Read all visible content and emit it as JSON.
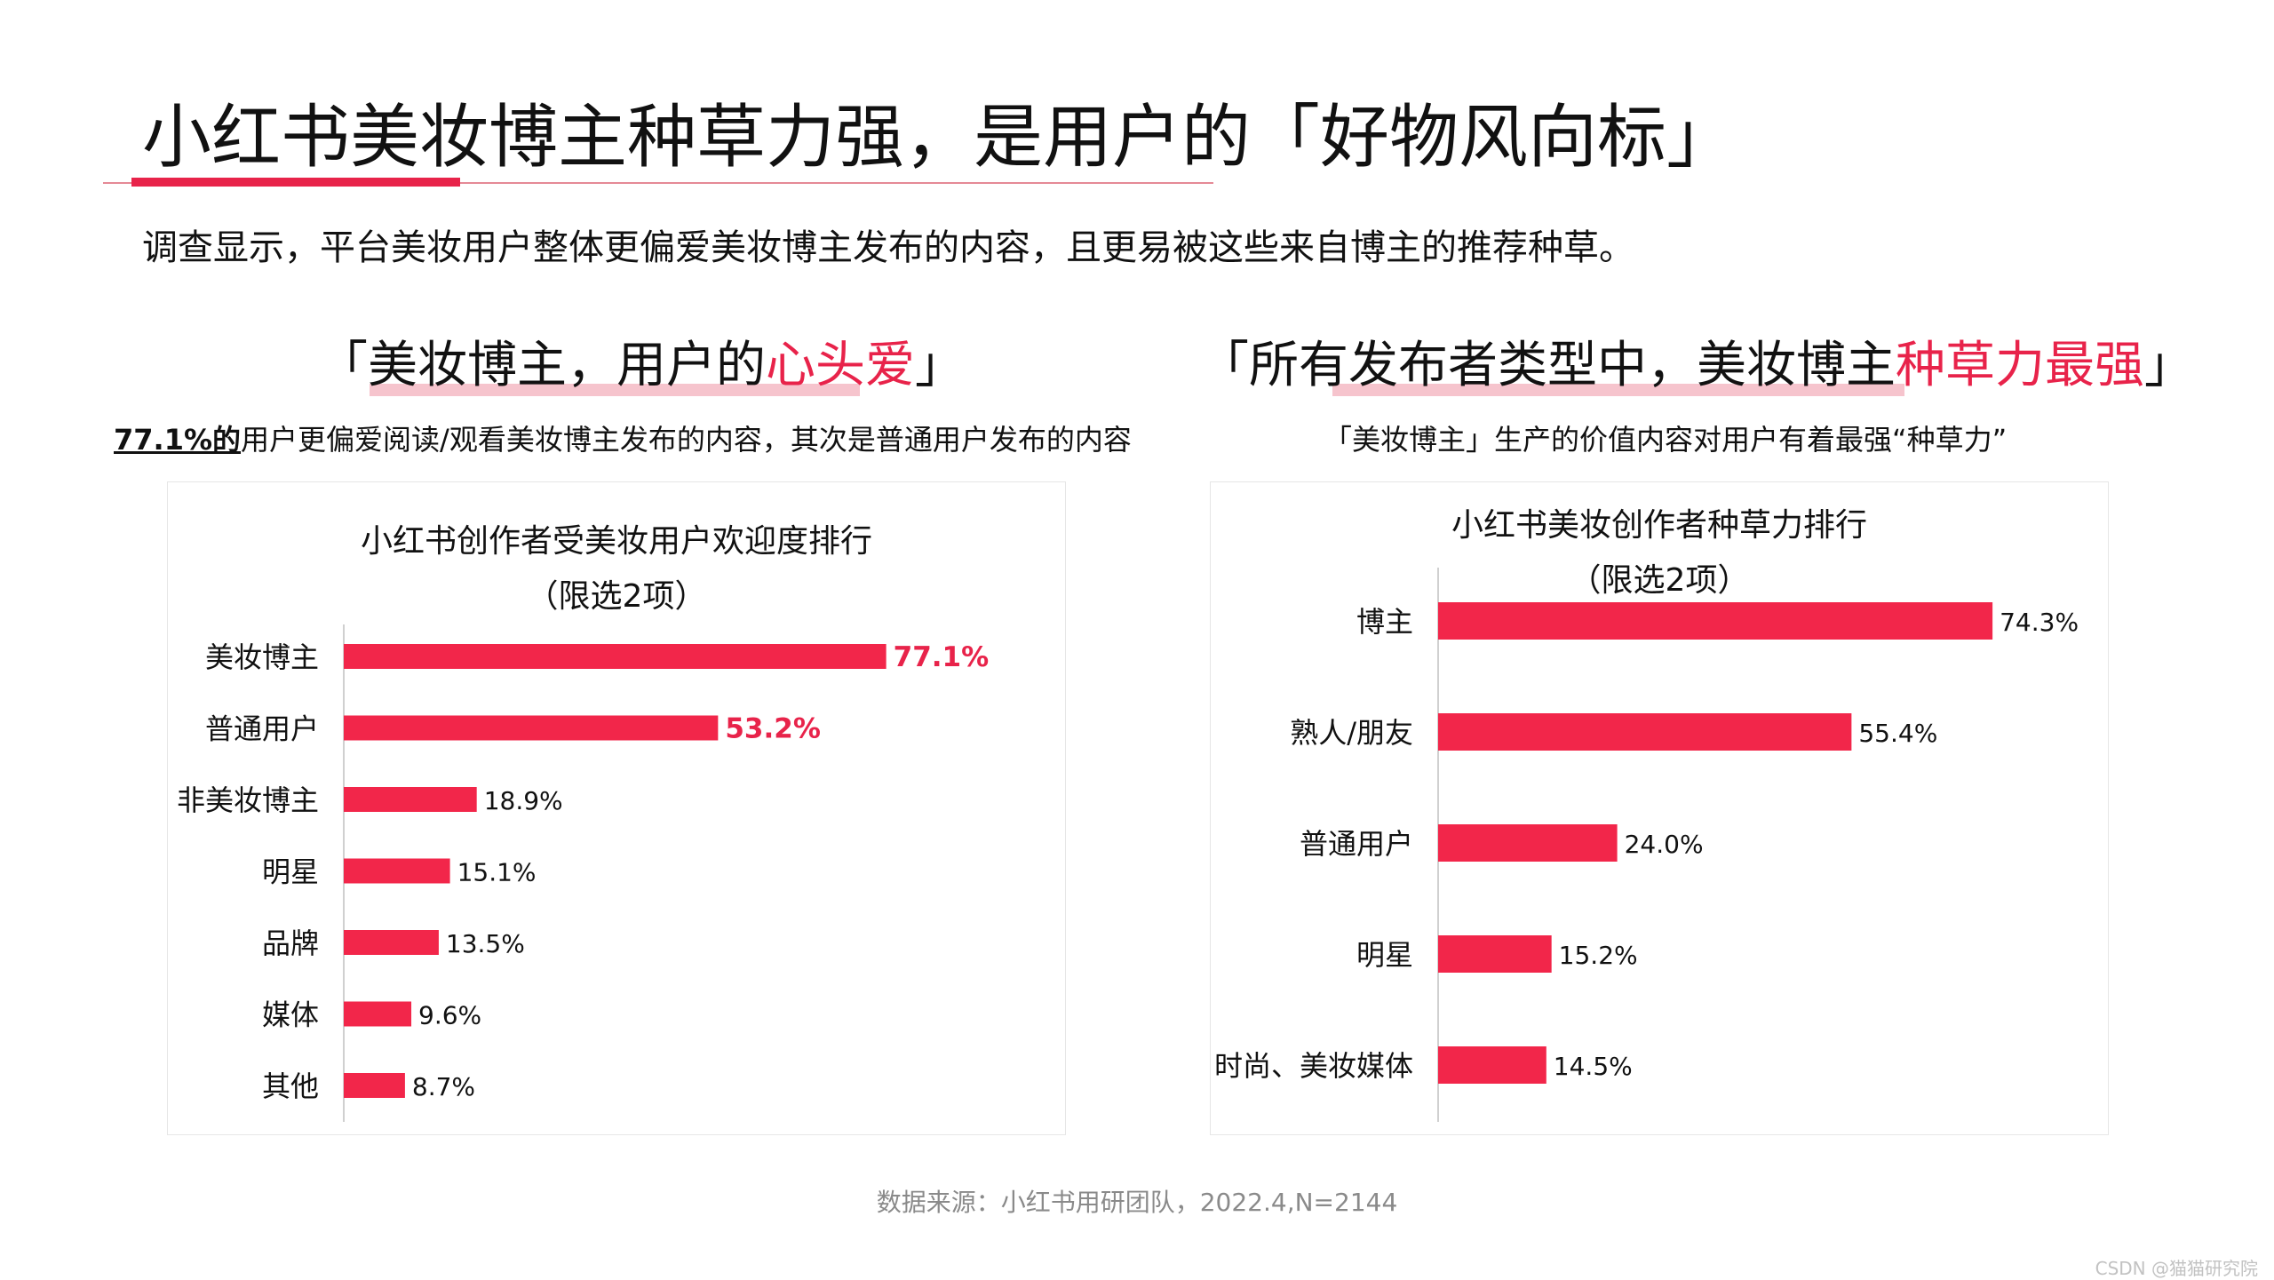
{
  "header": {
    "title": "小红书美妆博主种草力强，是用户的「好物风向标」",
    "subtitle": "调查显示，平台美妆用户整体更偏爱美妆博主发布的内容，且更易被这些来自博主的推荐种草。"
  },
  "left_section": {
    "heading_pre": "「美妆博主，用户的",
    "heading_hl": "心头爱",
    "heading_post": "」",
    "note_lead": "77.1%的",
    "note_rest": "用户更偏爱阅读/观看美妆博主发布的内容，其次是普通用户发布的内容"
  },
  "right_section": {
    "heading_pre": "「所有发布者类型中，美妆博主",
    "heading_hl": "种草力最强",
    "heading_post": "」",
    "note": "「美妆博主」生产的价值内容对用户有着最强“种草力”"
  },
  "colors": {
    "bar": "#f2264a",
    "highlight_label": "#e8234a",
    "accent_underline": "#e8234a",
    "highlight_bg": "#f6c4cd"
  },
  "chart_data": [
    {
      "type": "bar",
      "orientation": "horizontal",
      "title": "小红书创作者受美妆用户欢迎度排行",
      "subtitle": "（限选2项）",
      "categories": [
        "美妆博主",
        "普通用户",
        "非美妆博主",
        "明星",
        "品牌",
        "媒体",
        "其他"
      ],
      "values": [
        77.1,
        53.2,
        18.9,
        15.1,
        13.5,
        9.6,
        8.7
      ],
      "value_labels": [
        "77.1%",
        "53.2%",
        "18.9%",
        "15.1%",
        "13.5%",
        "9.6%",
        "8.7%"
      ],
      "highlighted": [
        0,
        1
      ],
      "unit": "%",
      "xlim": [
        0,
        100
      ],
      "grid": false,
      "legend": "none"
    },
    {
      "type": "bar",
      "orientation": "horizontal",
      "title": "小红书美妆创作者种草力排行",
      "subtitle": "（限选2项）",
      "categories": [
        "博主",
        "熟人/朋友",
        "普通用户",
        "明星",
        "时尚、美妆媒体"
      ],
      "values": [
        74.3,
        55.4,
        24.0,
        15.2,
        14.5
      ],
      "value_labels": [
        "74.3%",
        "55.4%",
        "24.0%",
        "15.2%",
        "14.5%"
      ],
      "highlighted": [],
      "unit": "%",
      "xlim": [
        0,
        100
      ],
      "grid": false,
      "legend": "none"
    }
  ],
  "footer": {
    "source": "数据来源：小红书用研团队，2022.4,N=2144",
    "watermark": "CSDN @猫猫研究院"
  }
}
